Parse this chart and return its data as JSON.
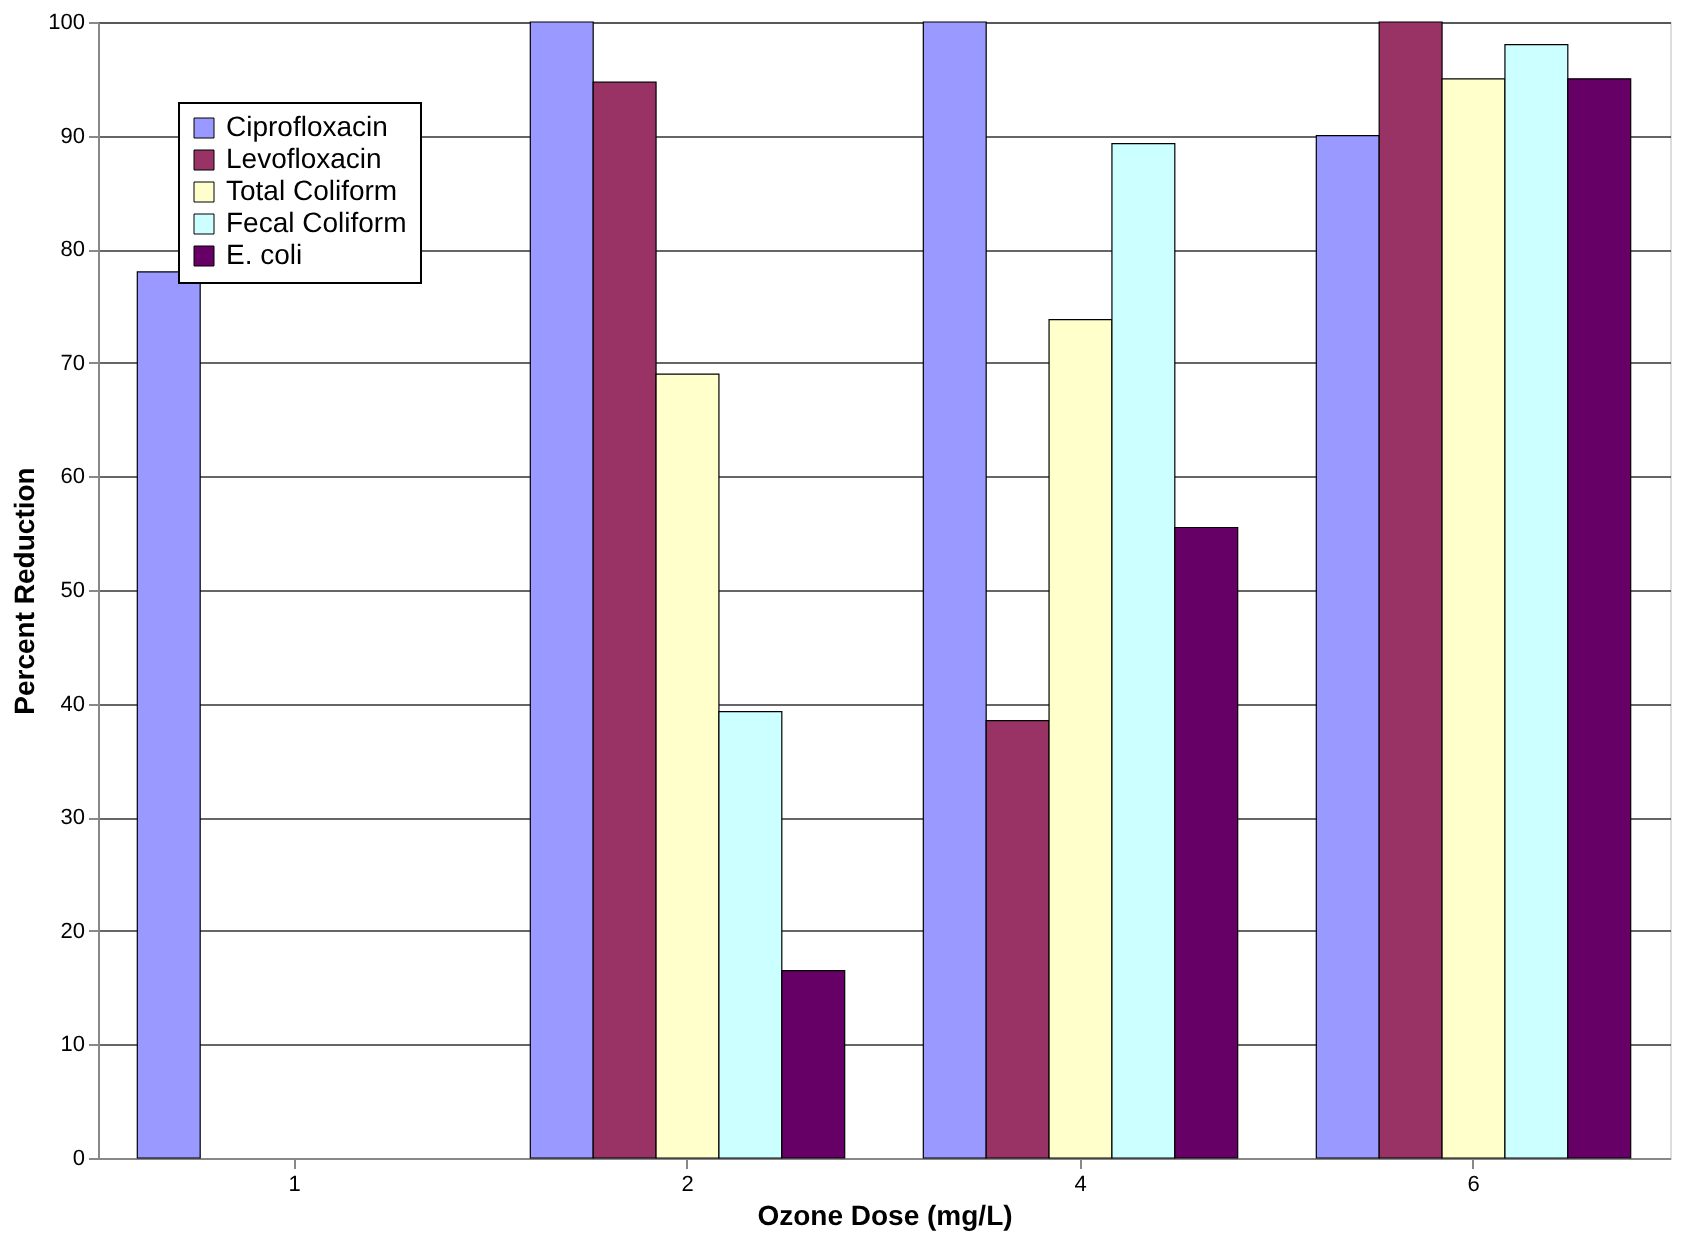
{
  "chart_data": {
    "type": "bar",
    "xlabel": "Ozone Dose (mg/L)",
    "ylabel": "Percent Reduction",
    "categories": [
      "1",
      "2",
      "4",
      "6"
    ],
    "series": [
      {
        "name": "Ciprofloxacin",
        "color": "#9999ff",
        "values": [
          78,
          100,
          100,
          90
        ]
      },
      {
        "name": "Levofloxacin",
        "color": "#993366",
        "values": [
          null,
          94.7,
          38.5,
          100
        ]
      },
      {
        "name": "Total Coliform",
        "color": "#ffffcc",
        "values": [
          null,
          69,
          73.8,
          95
        ]
      },
      {
        "name": "Fecal Coliform",
        "color": "#ccffff",
        "values": [
          null,
          39.3,
          89.3,
          98
        ]
      },
      {
        "name": "E. coli",
        "color": "#660066",
        "values": [
          null,
          16.5,
          55.5,
          95
        ]
      }
    ],
    "ylim": [
      0,
      100
    ],
    "yticks": [
      0,
      10,
      20,
      30,
      40,
      50,
      60,
      70,
      80,
      90,
      100
    ],
    "grid": "y",
    "legend": "top left"
  }
}
